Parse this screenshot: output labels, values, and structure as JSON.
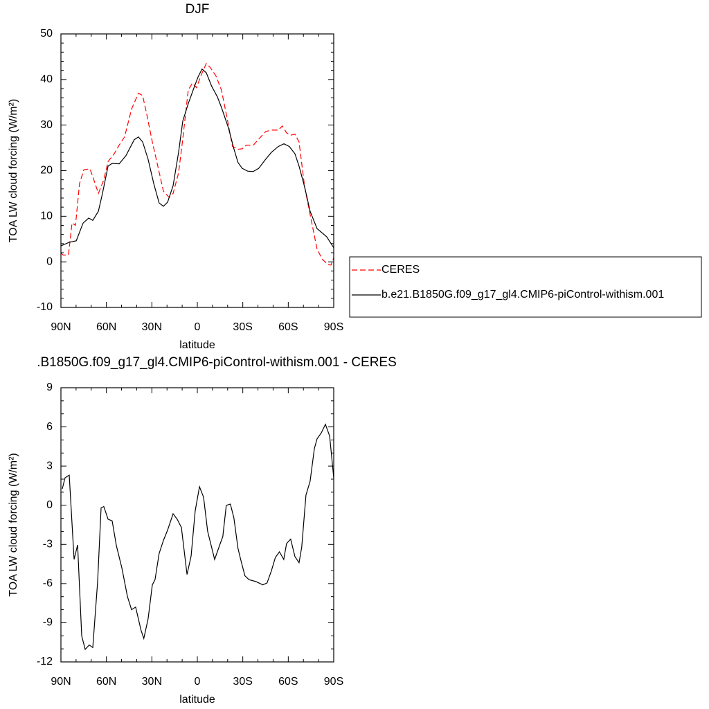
{
  "chart_data": [
    {
      "type": "line",
      "title": "DJF",
      "xlabel": "latitude",
      "ylabel": "TOA LW cloud forcing (W/m²)",
      "xlim": [
        90,
        -90
      ],
      "xticks": [
        {
          "value": 90,
          "label": "90N"
        },
        {
          "value": 60,
          "label": "60N"
        },
        {
          "value": 30,
          "label": "30N"
        },
        0,
        {
          "value": -30,
          "label": "30S"
        },
        {
          "value": -60,
          "label": "60S"
        },
        {
          "value": -90,
          "label": "90S"
        }
      ],
      "ylim": [
        -10,
        50
      ],
      "yticks": [
        -10,
        0,
        10,
        20,
        30,
        40,
        50
      ],
      "legend": "right",
      "series": [
        {
          "name": "CERES",
          "color": "#ff0000",
          "dashed": true,
          "x": [
            90,
            88.6,
            85,
            82.7,
            80.4,
            77.7,
            74.9,
            70.8,
            68,
            65.3,
            61.7,
            58.9,
            54.8,
            51.6,
            48,
            43.4,
            38.9,
            36.1,
            33.4,
            29.7,
            26.1,
            22.4,
            18.8,
            16,
            12.4,
            9.6,
            6,
            3.3,
            0.5,
            -2.3,
            -5.9,
            -8.6,
            -12.3,
            -15.9,
            -19.6,
            -23.2,
            -26.8,
            -29.6,
            -32.4,
            -37,
            -40.7,
            -45.2,
            -48.8,
            -53.4,
            -56.1,
            -58.9,
            -61.6,
            -64.4,
            -67.1,
            -70.8,
            -74.4,
            -79,
            -82.6,
            -86.3,
            -88.2,
            -90
          ],
          "values": [
            1.9,
            1.5,
            1.5,
            8.5,
            8,
            17.2,
            20.2,
            20.4,
            17.7,
            15,
            18,
            22,
            23.7,
            25.6,
            27.4,
            33.5,
            37,
            36.5,
            32.4,
            26.3,
            21,
            15.5,
            14.2,
            15,
            19.5,
            27,
            37.7,
            39.2,
            38.2,
            40.8,
            43.5,
            42.6,
            40.8,
            37.7,
            31.6,
            25.3,
            24.7,
            24.8,
            25.6,
            25.6,
            27,
            28.6,
            28.9,
            28.9,
            29.8,
            28.3,
            27.8,
            28,
            26.3,
            16.4,
            10.4,
            2.8,
            0.5,
            -0.6,
            -0.7,
            0.9
          ]
        },
        {
          "name": "b.e21.B1850G.f09_g17_gl4.CMIP6-piControl-withism.001",
          "color": "#000000",
          "dashed": false,
          "x": [
            90,
            84.5,
            79.9,
            75.4,
            71.7,
            69,
            65.3,
            62.6,
            58.9,
            56.2,
            51.6,
            47.1,
            41.6,
            38.9,
            36.1,
            32.5,
            28.8,
            25.2,
            22.4,
            19.6,
            16,
            12.4,
            9.6,
            6,
            2.4,
            -0.4,
            -3.1,
            -5.9,
            -9.5,
            -13.2,
            -15.9,
            -20.5,
            -24.1,
            -26.8,
            -29.6,
            -33.2,
            -36.8,
            -40.5,
            -45.1,
            -48.8,
            -53.4,
            -57.1,
            -60.7,
            -64.4,
            -67.1,
            -70.8,
            -74.4,
            -79,
            -85.4,
            -90
          ],
          "values": [
            3.5,
            4.3,
            4.6,
            8.5,
            9.6,
            9.1,
            11.1,
            15,
            21,
            21.6,
            21.5,
            23.3,
            26.8,
            27.4,
            26.3,
            22.5,
            17.2,
            12.9,
            12.2,
            13.1,
            16.7,
            24,
            30.9,
            34.7,
            38,
            40.5,
            42.3,
            41.5,
            38.5,
            36.2,
            33.9,
            29.4,
            24.8,
            21.8,
            20.5,
            19.9,
            19.8,
            20.5,
            22.5,
            24,
            25.3,
            25.9,
            25.3,
            23.7,
            21,
            16.4,
            11.1,
            7.3,
            5.5,
            3.1
          ]
        }
      ]
    },
    {
      "type": "line",
      "title": ".B1850G.f09_g17_gl4.CMIP6-piControl-withism.001 - CERES",
      "xlabel": "latitude",
      "ylabel": "TOA LW cloud forcing (W/m²)",
      "xlim": [
        90,
        -90
      ],
      "xticks": [
        {
          "value": 90,
          "label": "90N"
        },
        {
          "value": 60,
          "label": "60N"
        },
        {
          "value": 30,
          "label": "30N"
        },
        0,
        {
          "value": -30,
          "label": "30S"
        },
        {
          "value": -60,
          "label": "60S"
        },
        {
          "value": -90,
          "label": "90S"
        }
      ],
      "ylim": [
        -12,
        9
      ],
      "yticks": [
        -12,
        -9,
        -6,
        -3,
        0,
        3,
        6,
        9
      ],
      "series": [
        {
          "color": "#000000",
          "dashed": false,
          "x": [
            89.1,
            87.3,
            84.5,
            81.3,
            79,
            76.3,
            74,
            71.3,
            69,
            65.8,
            63.5,
            61.7,
            58.9,
            56.2,
            53.4,
            49.8,
            46.1,
            43.4,
            40.7,
            37.1,
            35.3,
            32.5,
            29.7,
            27.9,
            25.2,
            22.4,
            19.6,
            16,
            13.3,
            10.5,
            6.8,
            4.1,
            1.4,
            -1.4,
            -4.1,
            -6.8,
            -11.4,
            -15.1,
            -16.8,
            -19.1,
            -21.8,
            -24.1,
            -26.8,
            -28.6,
            -31.4,
            -34.1,
            -38.7,
            -43.2,
            -46,
            -48.8,
            -51.5,
            -54.2,
            -57,
            -58.9,
            -61.6,
            -64.4,
            -67.1,
            -68.9,
            -71.7,
            -74.4,
            -77.2,
            -79,
            -81.8,
            -84.5,
            -87.3,
            -90
          ],
          "values": [
            1.26,
            2.1,
            2.3,
            -4.15,
            -3.04,
            -10,
            -11.04,
            -10.7,
            -10.9,
            -5.85,
            -0.2,
            -0.1,
            -1.07,
            -1.2,
            -3.1,
            -4.8,
            -7,
            -8,
            -7.8,
            -9.6,
            -10.2,
            -8.7,
            -6.1,
            -5.7,
            -3.7,
            -2.7,
            -1.9,
            -0.65,
            -1.07,
            -1.7,
            -5.3,
            -3.9,
            -0.44,
            1.42,
            0.62,
            -2,
            -4.15,
            -2.93,
            -2.4,
            -0.01,
            0.09,
            -0.97,
            -3.3,
            -4.15,
            -5.4,
            -5.7,
            -5.85,
            -6.1,
            -5.95,
            -5.05,
            -4,
            -3.57,
            -4.15,
            -2.93,
            -2.6,
            -3.94,
            -4.4,
            -3.2,
            0.78,
            1.84,
            4.33,
            5.08,
            5.55,
            6.2,
            5.3,
            2.1
          ]
        }
      ]
    }
  ]
}
